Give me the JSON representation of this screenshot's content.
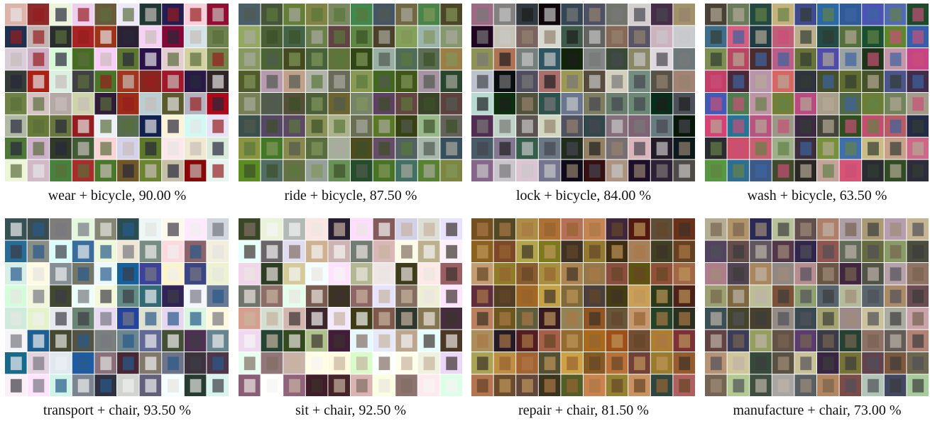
{
  "panels": [
    {
      "caption": "wear + bicycle, 90.00 %"
    },
    {
      "caption": "ride + bicycle, 87.50 %"
    },
    {
      "caption": "lock + bicycle, 84.00 %"
    },
    {
      "caption": "wash + bicycle, 63.50 %"
    },
    {
      "caption": "transport + chair, 93.50 %"
    },
    {
      "caption": "sit + chair, 92.50 %"
    },
    {
      "caption": "repair + chair, 81.50 %"
    },
    {
      "caption": "manufacture + chair, 73.00 %"
    }
  ]
}
